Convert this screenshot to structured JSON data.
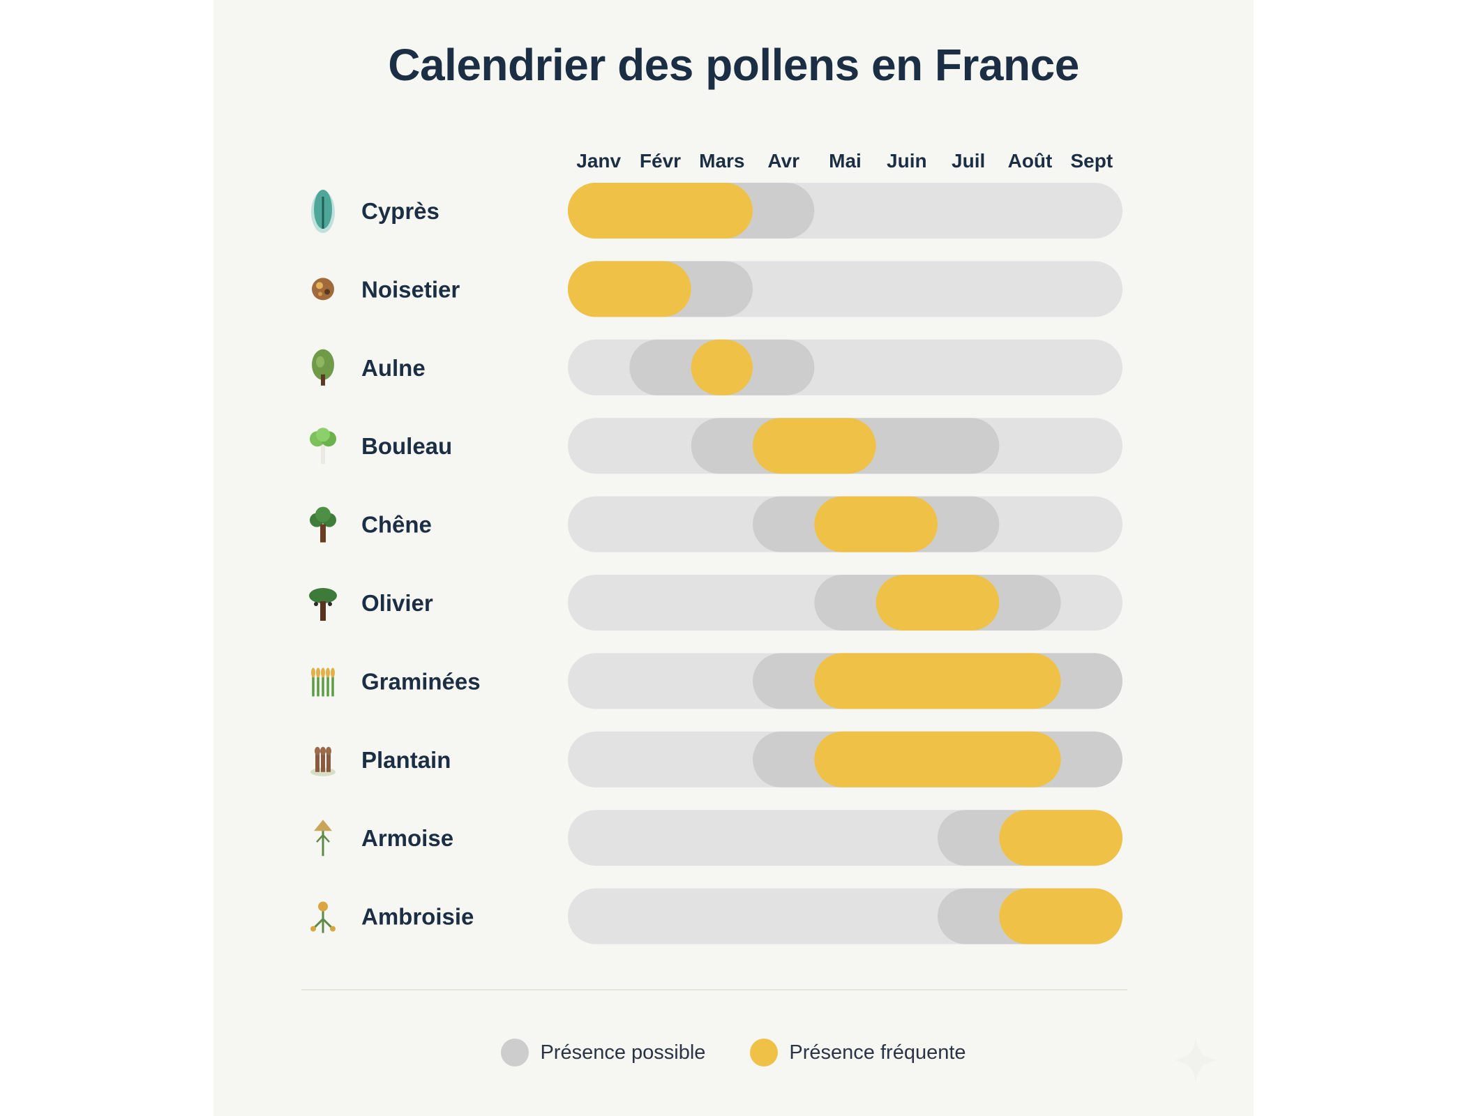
{
  "chart_data": {
    "type": "gantt",
    "title": "Calendrier des pollens en France",
    "months": [
      "Janv",
      "Févr",
      "Mars",
      "Avr",
      "Mai",
      "Juin",
      "Juil",
      "Août",
      "Sept"
    ],
    "rows": [
      {
        "name": "Cyprès",
        "icon": "cypress-icon",
        "possible": [
          1.0,
          4.0
        ],
        "frequent": [
          1.0,
          3.0
        ]
      },
      {
        "name": "Noisetier",
        "icon": "hazelnut-icon",
        "possible": [
          1.0,
          3.0
        ],
        "frequent": [
          1.0,
          2.0
        ]
      },
      {
        "name": "Aulne",
        "icon": "alder-icon",
        "possible": [
          2.0,
          4.0
        ],
        "frequent": [
          3.0,
          3.0
        ]
      },
      {
        "name": "Bouleau",
        "icon": "birch-icon",
        "possible": [
          3.0,
          7.0
        ],
        "frequent": [
          4.0,
          5.0
        ]
      },
      {
        "name": "Chêne",
        "icon": "oak-icon",
        "possible": [
          4.0,
          7.0
        ],
        "frequent": [
          5.0,
          6.0
        ]
      },
      {
        "name": "Olivier",
        "icon": "olive-tree-icon",
        "possible": [
          5.0,
          8.0
        ],
        "frequent": [
          6.0,
          7.0
        ]
      },
      {
        "name": "Graminées",
        "icon": "grass-icon",
        "possible": [
          4.0,
          9.0
        ],
        "frequent": [
          5.0,
          8.0
        ]
      },
      {
        "name": "Plantain",
        "icon": "plantain-icon",
        "possible": [
          4.0,
          9.0
        ],
        "frequent": [
          5.0,
          8.0
        ]
      },
      {
        "name": "Armoise",
        "icon": "mugwort-icon",
        "possible": [
          7.0,
          9.0
        ],
        "frequent": [
          8.0,
          9.0
        ]
      },
      {
        "name": "Ambroisie",
        "icon": "ragweed-icon",
        "possible": [
          7.0,
          9.0
        ],
        "frequent": [
          8.0,
          9.0
        ]
      }
    ],
    "legend": [
      {
        "label": "Présence possible",
        "color": "#cdcdcd"
      },
      {
        "label": "Présence fréquente",
        "color": "#efc146"
      }
    ],
    "colors": {
      "track": "#e2e2e2",
      "possible": "#cdcdcd",
      "frequent": "#efc146",
      "text": "#1c2e44"
    }
  }
}
